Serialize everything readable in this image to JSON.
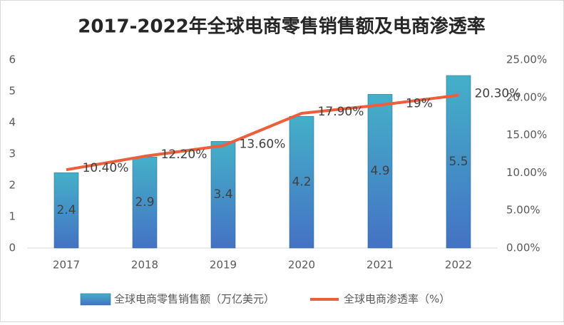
{
  "chart_data": {
    "type": "bar-line",
    "title": "2017-2022年全球电商零售销售额及电商渗透率",
    "categories": [
      "2017",
      "2018",
      "2019",
      "2020",
      "2021",
      "2022"
    ],
    "series": [
      {
        "name": "全球电商零售销售额（万亿美元）",
        "type": "bar",
        "color": "#44b0c8",
        "values": [
          2.4,
          2.9,
          3.4,
          4.2,
          4.9,
          5.5
        ]
      },
      {
        "name": "全球电商渗透率（%）",
        "type": "line",
        "axis": "y2",
        "color": "#ec5f3a",
        "values": [
          10.4,
          12.2,
          13.6,
          17.9,
          19,
          20.3
        ],
        "value_labels": [
          "10.40%",
          "12.20%",
          "13.60%",
          "17.90%",
          "19%",
          "20.30%"
        ]
      }
    ],
    "ylim": [
      0,
      6
    ],
    "yticks": [
      0,
      1,
      2,
      3,
      4,
      5,
      6
    ],
    "y2lim": [
      0,
      25
    ],
    "y2ticks": [
      {
        "value": 0,
        "label": "0.00%"
      },
      {
        "value": 5,
        "label": "5.00%"
      },
      {
        "value": 10,
        "label": "10.00%"
      },
      {
        "value": 15,
        "label": "15.00%"
      },
      {
        "value": 20,
        "label": "20.00%"
      },
      {
        "value": 25,
        "label": "25.00%"
      }
    ],
    "legend": "bottom"
  }
}
